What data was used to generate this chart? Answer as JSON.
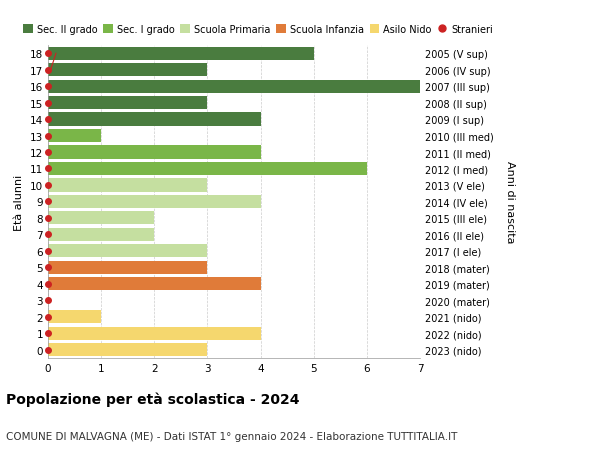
{
  "ages": [
    18,
    17,
    16,
    15,
    14,
    13,
    12,
    11,
    10,
    9,
    8,
    7,
    6,
    5,
    4,
    3,
    2,
    1,
    0
  ],
  "right_labels": [
    "2005 (V sup)",
    "2006 (IV sup)",
    "2007 (III sup)",
    "2008 (II sup)",
    "2009 (I sup)",
    "2010 (III med)",
    "2011 (II med)",
    "2012 (I med)",
    "2013 (V ele)",
    "2014 (IV ele)",
    "2015 (III ele)",
    "2016 (II ele)",
    "2017 (I ele)",
    "2018 (mater)",
    "2019 (mater)",
    "2020 (mater)",
    "2021 (nido)",
    "2022 (nido)",
    "2023 (nido)"
  ],
  "bar_values": [
    5,
    3,
    7,
    3,
    4,
    1,
    4,
    6,
    3,
    4,
    2,
    2,
    3,
    3,
    4,
    0,
    1,
    4,
    3
  ],
  "bar_colors": [
    "#4a7c3f",
    "#4a7c3f",
    "#4a7c3f",
    "#4a7c3f",
    "#4a7c3f",
    "#7ab648",
    "#7ab648",
    "#7ab648",
    "#c5dfa0",
    "#c5dfa0",
    "#c5dfa0",
    "#c5dfa0",
    "#c5dfa0",
    "#e07b39",
    "#e07b39",
    "#e07b39",
    "#f5d76e",
    "#f5d76e",
    "#f5d76e"
  ],
  "stranieri_color": "#cc2222",
  "line_x": [
    0.05,
    0.15
  ],
  "line_ages": [
    17,
    18
  ],
  "legend_labels": [
    "Sec. II grado",
    "Sec. I grado",
    "Scuola Primaria",
    "Scuola Infanzia",
    "Asilo Nido",
    "Stranieri"
  ],
  "legend_colors": [
    "#4a7c3f",
    "#7ab648",
    "#c5dfa0",
    "#e07b39",
    "#f5d76e",
    "#cc2222"
  ],
  "title": "Popolazione per età scolastica - 2024",
  "subtitle": "COMUNE DI MALVAGNA (ME) - Dati ISTAT 1° gennaio 2024 - Elaborazione TUTTITALIA.IT",
  "ylabel": "Età alunni",
  "right_ylabel": "Anni di nascita",
  "xlim": [
    0,
    7
  ],
  "ylim": [
    -0.5,
    18.5
  ],
  "bg_color": "#ffffff",
  "bar_height": 0.8,
  "grid_color": "#cccccc"
}
